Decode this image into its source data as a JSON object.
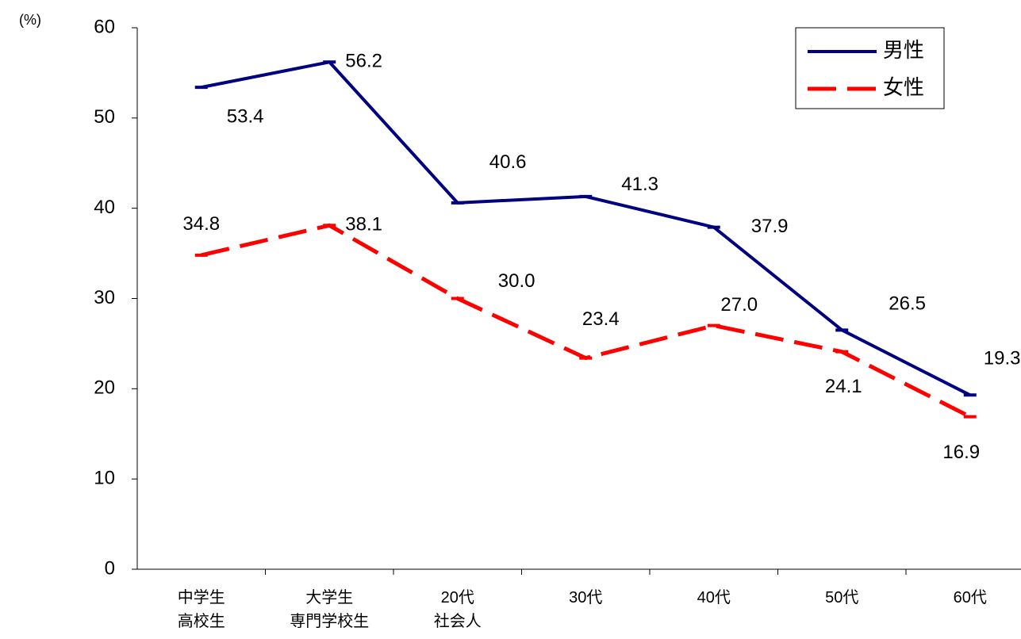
{
  "chart_data": {
    "type": "line",
    "y_label": "(%)",
    "categories": [
      "中学生\n高校生",
      "大学生\n専門学校生",
      "20代\n社会人",
      "30代",
      "40代",
      "50代",
      "60代"
    ],
    "series": [
      {
        "name": "男性",
        "color": "#000080",
        "style": "solid",
        "values": [
          53.4,
          56.2,
          40.6,
          41.3,
          37.9,
          26.5,
          19.3
        ],
        "value_labels": [
          "53.4",
          "56.2",
          "40.6",
          "41.3",
          "37.9",
          "26.5",
          "19.3"
        ]
      },
      {
        "name": "女性",
        "color": "#ff0000",
        "style": "dashed",
        "values": [
          34.8,
          38.1,
          30.0,
          23.4,
          27.0,
          24.1,
          16.9
        ],
        "value_labels": [
          "34.8",
          "38.1",
          "30.0",
          "23.4",
          "27.0",
          "24.1",
          "16.9"
        ]
      }
    ],
    "ylim": [
      0,
      60
    ],
    "yticks": [
      0,
      10,
      20,
      30,
      40,
      50,
      60
    ],
    "legend": "upper right"
  }
}
